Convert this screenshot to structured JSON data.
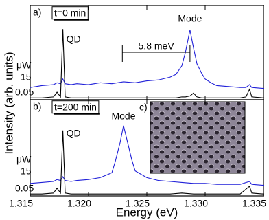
{
  "chart_data": [
    {
      "type": "line",
      "panel_label": "a)",
      "condition": "t=0 min",
      "qd_label": "QD",
      "mode_label": "Mode",
      "power_unit": "μW",
      "ylabel": "Intensity (arb. units)",
      "splitting_label": "5.8 meV",
      "splitting_range": [
        1.3229,
        1.3287
      ],
      "x": [
        1.315,
        1.316,
        1.317,
        1.3173,
        1.3176,
        1.3178,
        1.318,
        1.3185,
        1.319,
        1.32,
        1.321,
        1.322,
        1.323,
        1.324,
        1.325,
        1.326,
        1.327,
        1.3275,
        1.328,
        1.3283,
        1.3287,
        1.329,
        1.3293,
        1.3297,
        1.33,
        1.3305,
        1.331,
        1.332,
        1.333,
        1.3335,
        1.3338,
        1.334,
        1.335
      ],
      "series": [
        {
          "name": "15",
          "color": "#1f1fd8",
          "values": [
            13,
            15,
            16,
            18,
            17,
            22,
            17,
            16,
            17,
            16,
            18,
            17,
            19,
            18,
            20,
            21,
            24,
            27,
            36,
            50,
            74,
            55,
            38,
            28,
            22,
            18,
            15,
            14,
            13,
            13,
            16,
            13,
            12
          ]
        },
        {
          "name": "0.05",
          "color": "#000000",
          "values": [
            2,
            2,
            3,
            8,
            3,
            75,
            3,
            2,
            2,
            2,
            2,
            2,
            2,
            2,
            2,
            2,
            2,
            2,
            3,
            3,
            4,
            7,
            3,
            2,
            2,
            2,
            2,
            2,
            2,
            3,
            11,
            3,
            2
          ]
        }
      ],
      "xlim": [
        1.315,
        1.335
      ],
      "xticks": [
        1.315,
        {
          "value": 1.32,
          "label": "1.320"
        },
        1.325,
        {
          "value": 1.33,
          "label": "1.330"
        },
        1.335
      ],
      "ylim": [
        0,
        100
      ]
    },
    {
      "type": "line",
      "panel_label": "b)",
      "condition": "t=200 min",
      "qd_label": "QD",
      "mode_label": "Mode",
      "power_unit": "μW",
      "inset_label": "c)",
      "xlabel": "Energy (eV)",
      "x": [
        1.315,
        1.316,
        1.317,
        1.3173,
        1.3176,
        1.3178,
        1.318,
        1.3185,
        1.319,
        1.32,
        1.321,
        1.322,
        1.3223,
        1.3227,
        1.323,
        1.3233,
        1.3237,
        1.324,
        1.325,
        1.326,
        1.327,
        1.328,
        1.329,
        1.33,
        1.331,
        1.332,
        1.333,
        1.3338,
        1.334,
        1.335
      ],
      "series": [
        {
          "name": "15",
          "color": "#1f1fd8",
          "values": [
            13,
            14,
            15,
            17,
            16,
            20,
            16,
            15,
            16,
            17,
            19,
            24,
            36,
            55,
            73,
            58,
            38,
            26,
            19,
            16,
            15,
            14,
            13,
            13,
            12,
            12,
            12,
            15,
            12,
            11
          ]
        },
        {
          "name": "0.05",
          "color": "#000000",
          "values": [
            2,
            2,
            3,
            8,
            3,
            68,
            3,
            2,
            2,
            2,
            2,
            2,
            2,
            2,
            2,
            2,
            2,
            2,
            2,
            2,
            2,
            3,
            2,
            2,
            2,
            2,
            2,
            10,
            3,
            2
          ]
        }
      ],
      "xlim": [
        1.315,
        1.335
      ],
      "xticks": [
        1.315,
        {
          "value": 1.32,
          "label": "1.320"
        },
        1.325,
        {
          "value": 1.33,
          "label": "1.330"
        },
        1.335
      ],
      "ylim": [
        0,
        100
      ]
    }
  ]
}
